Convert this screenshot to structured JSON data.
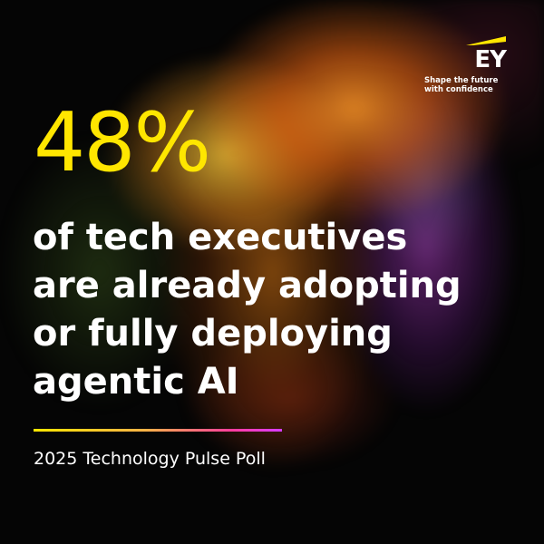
{
  "logo": {
    "letters": "EY",
    "tagline_line1": "Shape the future",
    "tagline_line2": "with confidence",
    "bar_color": "#ffe600"
  },
  "stat": {
    "value": "48%",
    "color": "#ffe600"
  },
  "headline": {
    "line1": "of tech executives",
    "line2": "are already adopting",
    "line3": "or fully deploying",
    "line4": "agentic AI"
  },
  "source": {
    "label": "2025 Technology Pulse Poll"
  },
  "colors": {
    "background": "#050505",
    "text": "#ffffff",
    "accent_yellow": "#ffe600",
    "accent_magenta": "#d63cff"
  }
}
